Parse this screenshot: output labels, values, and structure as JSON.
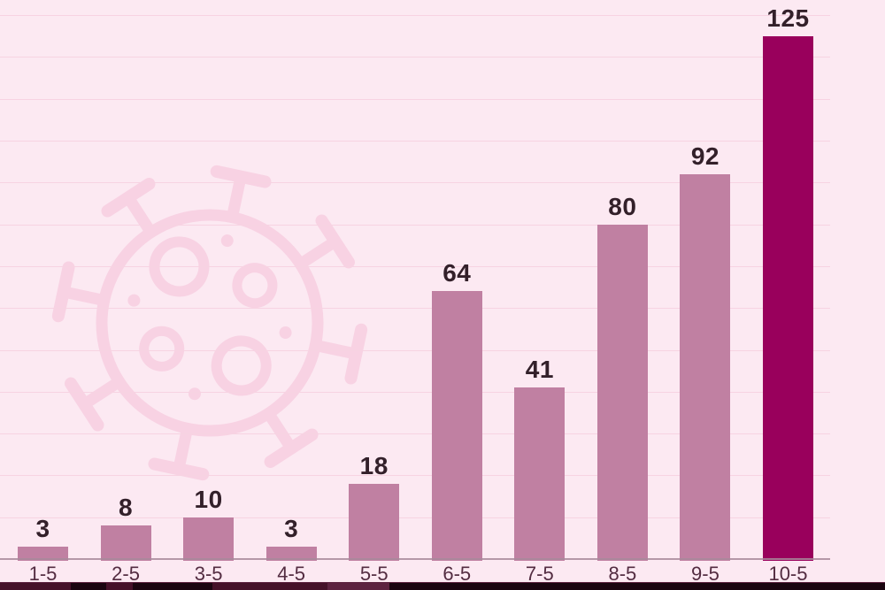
{
  "page": {
    "background": "#fce9f2"
  },
  "chart_data": {
    "type": "bar",
    "title": "",
    "xlabel": "",
    "ylabel": "",
    "categories": [
      "1-5",
      "2-5",
      "3-5",
      "4-5",
      "5-5",
      "6-5",
      "7-5",
      "8-5",
      "9-5",
      "10-5"
    ],
    "values": [
      3,
      8,
      10,
      3,
      18,
      64,
      41,
      80,
      92,
      125
    ],
    "value_labels": [
      "3",
      "8",
      "10",
      "3",
      "18",
      "64",
      "41",
      "80",
      "92",
      "125"
    ],
    "highlight_index": 9,
    "ylim": [
      0,
      130
    ],
    "grid": "horizontal",
    "gridline_step": 10,
    "legend": "none",
    "colors": {
      "background": "#fce9f2",
      "bar": "#c080a2",
      "bar_highlight": "#99005c",
      "gridline": "#f7d3e2",
      "axis_line": "#a8899b",
      "value_label": "#33202a",
      "tick_label": "#532c41",
      "watermark": "#f8d2e3",
      "bottom_strip_maroon": "#451129",
      "bottom_strip_dark": "#1a0510",
      "bottom_strip_light": "#5d2240"
    }
  },
  "watermark": {
    "icon": "coronavirus-icon"
  }
}
